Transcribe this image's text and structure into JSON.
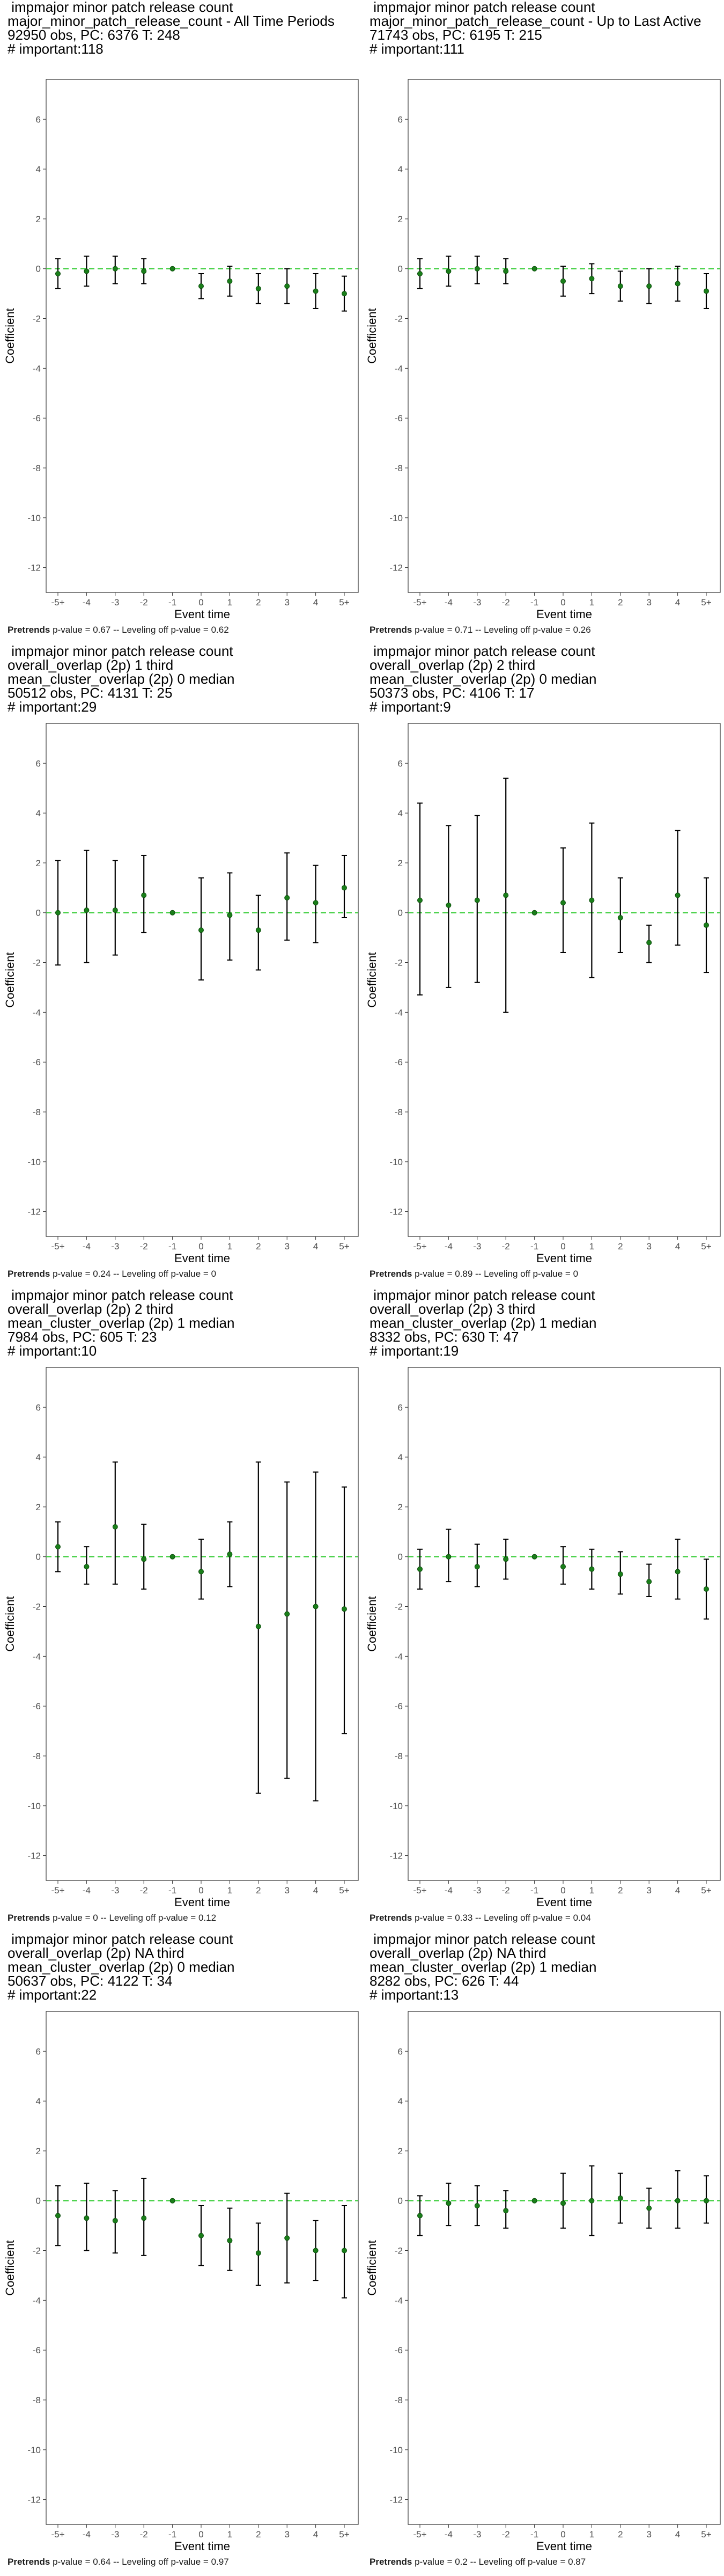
{
  "chart_data": [
    {
      "type": "scatter",
      "title_lines": [
        " impmajor minor patch release count",
        "major_minor_patch_release_count - All Time Periods",
        "92950 obs, PC: 6376 T: 248",
        "# important:118"
      ],
      "xlabel": "Event time",
      "ylabel": "Coefficient",
      "ylim": [
        -13,
        7.6
      ],
      "yticks": [
        6,
        4,
        2,
        0,
        -2,
        -4,
        -6,
        -8,
        -10,
        -12
      ],
      "categories": [
        "-5+",
        "-4",
        "-3",
        "-2",
        "-1",
        "0",
        "1",
        "2",
        "3",
        "4",
        "5+"
      ],
      "estimates": [
        -0.2,
        -0.1,
        0.0,
        -0.1,
        0.0,
        -0.7,
        -0.5,
        -0.8,
        -0.7,
        -0.9,
        -1.0
      ],
      "ci_low": [
        -0.8,
        -0.7,
        -0.6,
        -0.6,
        0.0,
        -1.2,
        -1.1,
        -1.4,
        -1.4,
        -1.6,
        -1.7
      ],
      "ci_high": [
        0.4,
        0.5,
        0.5,
        0.4,
        0.0,
        -0.2,
        0.1,
        -0.2,
        0.0,
        -0.2,
        -0.3
      ],
      "reference_line": 0,
      "caption_bold": "Pretrends",
      "caption_rest": " p-value = 0.67 -- Leveling off p-value = 0.62"
    },
    {
      "type": "scatter",
      "title_lines": [
        " impmajor minor patch release count",
        "major_minor_patch_release_count - Up to Last Active",
        "71743 obs, PC: 6195 T: 215",
        "# important:111"
      ],
      "xlabel": "Event time",
      "ylabel": "Coefficient",
      "ylim": [
        -13,
        7.6
      ],
      "yticks": [
        6,
        4,
        2,
        0,
        -2,
        -4,
        -6,
        -8,
        -10,
        -12
      ],
      "categories": [
        "-5+",
        "-4",
        "-3",
        "-2",
        "-1",
        "0",
        "1",
        "2",
        "3",
        "4",
        "5+"
      ],
      "estimates": [
        -0.2,
        -0.1,
        0.0,
        -0.1,
        0.0,
        -0.5,
        -0.4,
        -0.7,
        -0.7,
        -0.6,
        -0.9
      ],
      "ci_low": [
        -0.8,
        -0.7,
        -0.6,
        -0.6,
        0.0,
        -1.1,
        -1.0,
        -1.3,
        -1.4,
        -1.3,
        -1.6
      ],
      "ci_high": [
        0.4,
        0.5,
        0.5,
        0.4,
        0.0,
        0.1,
        0.2,
        -0.1,
        0.0,
        0.1,
        -0.2
      ],
      "reference_line": 0,
      "caption_bold": "Pretrends",
      "caption_rest": " p-value = 0.71 -- Leveling off p-value = 0.26"
    },
    {
      "type": "scatter",
      "title_lines": [
        " impmajor minor patch release count",
        "overall_overlap (2p) 1 third",
        "mean_cluster_overlap (2p) 0 median",
        "50512 obs, PC: 4131 T: 25",
        "# important:29"
      ],
      "xlabel": "Event time",
      "ylabel": "Coefficient",
      "ylim": [
        -13,
        7.6
      ],
      "yticks": [
        6,
        4,
        2,
        0,
        -2,
        -4,
        -6,
        -8,
        -10,
        -12
      ],
      "categories": [
        "-5+",
        "-4",
        "-3",
        "-2",
        "-1",
        "0",
        "1",
        "2",
        "3",
        "4",
        "5+"
      ],
      "estimates": [
        0.0,
        0.1,
        0.1,
        0.7,
        0.0,
        -0.7,
        -0.1,
        -0.7,
        0.6,
        0.4,
        1.0
      ],
      "ci_low": [
        -2.1,
        -2.0,
        -1.7,
        -0.8,
        0.0,
        -2.7,
        -1.9,
        -2.3,
        -1.1,
        -1.2,
        -0.2
      ],
      "ci_high": [
        2.1,
        2.5,
        2.1,
        2.3,
        0.0,
        1.4,
        1.6,
        0.7,
        2.4,
        1.9,
        2.3
      ],
      "reference_line": 0,
      "caption_bold": "Pretrends",
      "caption_rest": " p-value = 0.24 -- Leveling off p-value = 0"
    },
    {
      "type": "scatter",
      "title_lines": [
        " impmajor minor patch release count",
        "overall_overlap (2p) 2 third",
        "mean_cluster_overlap (2p) 0 median",
        "50373 obs, PC: 4106 T: 17",
        "# important:9"
      ],
      "xlabel": "Event time",
      "ylabel": "Coefficient",
      "ylim": [
        -13,
        7.6
      ],
      "yticks": [
        6,
        4,
        2,
        0,
        -2,
        -4,
        -6,
        -8,
        -10,
        -12
      ],
      "categories": [
        "-5+",
        "-4",
        "-3",
        "-2",
        "-1",
        "0",
        "1",
        "2",
        "3",
        "4",
        "5+"
      ],
      "estimates": [
        0.5,
        0.3,
        0.5,
        0.7,
        0.0,
        0.4,
        0.5,
        -0.2,
        -1.2,
        0.7,
        -0.5
      ],
      "ci_low": [
        -3.3,
        -3.0,
        -2.8,
        -4.0,
        0.0,
        -1.6,
        -2.6,
        -1.6,
        -2.0,
        -1.3,
        -2.4
      ],
      "ci_high": [
        4.4,
        3.5,
        3.9,
        5.4,
        0.0,
        2.6,
        3.6,
        1.4,
        -0.5,
        3.3,
        1.4
      ],
      "reference_line": 0,
      "caption_bold": "Pretrends",
      "caption_rest": " p-value = 0.89 -- Leveling off p-value = 0"
    },
    {
      "type": "scatter",
      "title_lines": [
        " impmajor minor patch release count",
        "overall_overlap (2p) 2 third",
        "mean_cluster_overlap (2p) 1 median",
        "7984 obs, PC: 605 T: 23",
        "# important:10"
      ],
      "xlabel": "Event time",
      "ylabel": "Coefficient",
      "ylim": [
        -13,
        7.6
      ],
      "yticks": [
        6,
        4,
        2,
        0,
        -2,
        -4,
        -6,
        -8,
        -10,
        -12
      ],
      "categories": [
        "-5+",
        "-4",
        "-3",
        "-2",
        "-1",
        "0",
        "1",
        "2",
        "3",
        "4",
        "5+"
      ],
      "estimates": [
        0.4,
        -0.4,
        1.2,
        -0.1,
        0.0,
        -0.6,
        0.1,
        -2.8,
        -2.3,
        -2.0,
        -2.1
      ],
      "ci_low": [
        -0.6,
        -1.1,
        -1.1,
        -1.3,
        0.0,
        -1.7,
        -1.2,
        -9.5,
        -8.9,
        -9.8,
        -7.1
      ],
      "ci_high": [
        1.4,
        0.4,
        3.8,
        1.3,
        0.0,
        0.7,
        1.4,
        3.8,
        3.0,
        3.4,
        2.8
      ],
      "reference_line": 0,
      "caption_bold": "Pretrends",
      "caption_rest": " p-value = 0 -- Leveling off p-value = 0.12"
    },
    {
      "type": "scatter",
      "title_lines": [
        " impmajor minor patch release count",
        "overall_overlap (2p) 3 third",
        "mean_cluster_overlap (2p) 1 median",
        "8332 obs, PC: 630 T: 47",
        "# important:19"
      ],
      "xlabel": "Event time",
      "ylabel": "Coefficient",
      "ylim": [
        -13,
        7.6
      ],
      "yticks": [
        6,
        4,
        2,
        0,
        -2,
        -4,
        -6,
        -8,
        -10,
        -12
      ],
      "categories": [
        "-5+",
        "-4",
        "-3",
        "-2",
        "-1",
        "0",
        "1",
        "2",
        "3",
        "4",
        "5+"
      ],
      "estimates": [
        -0.5,
        0.0,
        -0.4,
        -0.1,
        0.0,
        -0.4,
        -0.5,
        -0.7,
        -1.0,
        -0.6,
        -1.3
      ],
      "ci_low": [
        -1.3,
        -1.0,
        -1.2,
        -0.9,
        0.0,
        -1.1,
        -1.3,
        -1.5,
        -1.6,
        -1.7,
        -2.5
      ],
      "ci_high": [
        0.3,
        1.1,
        0.5,
        0.7,
        0.0,
        0.4,
        0.3,
        0.2,
        -0.3,
        0.7,
        -0.1
      ],
      "reference_line": 0,
      "caption_bold": "Pretrends",
      "caption_rest": " p-value = 0.33 -- Leveling off p-value = 0.04"
    },
    {
      "type": "scatter",
      "title_lines": [
        " impmajor minor patch release count",
        "overall_overlap (2p) NA third",
        "mean_cluster_overlap (2p) 0 median",
        "50637 obs, PC: 4122 T: 34",
        "# important:22"
      ],
      "xlabel": "Event time",
      "ylabel": "Coefficient",
      "ylim": [
        -13,
        7.6
      ],
      "yticks": [
        6,
        4,
        2,
        0,
        -2,
        -4,
        -6,
        -8,
        -10,
        -12
      ],
      "categories": [
        "-5+",
        "-4",
        "-3",
        "-2",
        "-1",
        "0",
        "1",
        "2",
        "3",
        "4",
        "5+"
      ],
      "estimates": [
        -0.6,
        -0.7,
        -0.8,
        -0.7,
        0.0,
        -1.4,
        -1.6,
        -2.1,
        -1.5,
        -2.0,
        -2.0
      ],
      "ci_low": [
        -1.8,
        -2.0,
        -2.1,
        -2.2,
        0.0,
        -2.6,
        -2.8,
        -3.4,
        -3.3,
        -3.2,
        -3.9
      ],
      "ci_high": [
        0.6,
        0.7,
        0.4,
        0.9,
        0.0,
        -0.2,
        -0.3,
        -0.9,
        0.3,
        -0.8,
        -0.2
      ],
      "reference_line": 0,
      "caption_bold": "Pretrends",
      "caption_rest": " p-value = 0.64 -- Leveling off p-value = 0.97"
    },
    {
      "type": "scatter",
      "title_lines": [
        " impmajor minor patch release count",
        "overall_overlap (2p) NA third",
        "mean_cluster_overlap (2p) 1 median",
        "8282 obs, PC: 626 T: 44",
        "# important:13"
      ],
      "xlabel": "Event time",
      "ylabel": "Coefficient",
      "ylim": [
        -13,
        7.6
      ],
      "yticks": [
        6,
        4,
        2,
        0,
        -2,
        -4,
        -6,
        -8,
        -10,
        -12
      ],
      "categories": [
        "-5+",
        "-4",
        "-3",
        "-2",
        "-1",
        "0",
        "1",
        "2",
        "3",
        "4",
        "5+"
      ],
      "estimates": [
        -0.6,
        -0.1,
        -0.2,
        -0.4,
        0.0,
        -0.1,
        0.0,
        0.1,
        -0.3,
        0.0,
        0.0
      ],
      "ci_low": [
        -1.4,
        -1.0,
        -1.0,
        -1.1,
        0.0,
        -1.1,
        -1.4,
        -0.9,
        -1.1,
        -1.1,
        -0.9
      ],
      "ci_high": [
        0.2,
        0.7,
        0.6,
        0.4,
        0.0,
        1.1,
        1.4,
        1.1,
        0.5,
        1.2,
        1.0
      ],
      "reference_line": 0,
      "caption_bold": "Pretrends",
      "caption_rest": " p-value = 0.2 -- Leveling off p-value = 0.87"
    }
  ],
  "colors": {
    "point": "#1a7f1a",
    "errorbar": "#000000",
    "reference_line": "#33cc33",
    "panel_border": "#333333",
    "tick_label": "#4d4d4d"
  }
}
